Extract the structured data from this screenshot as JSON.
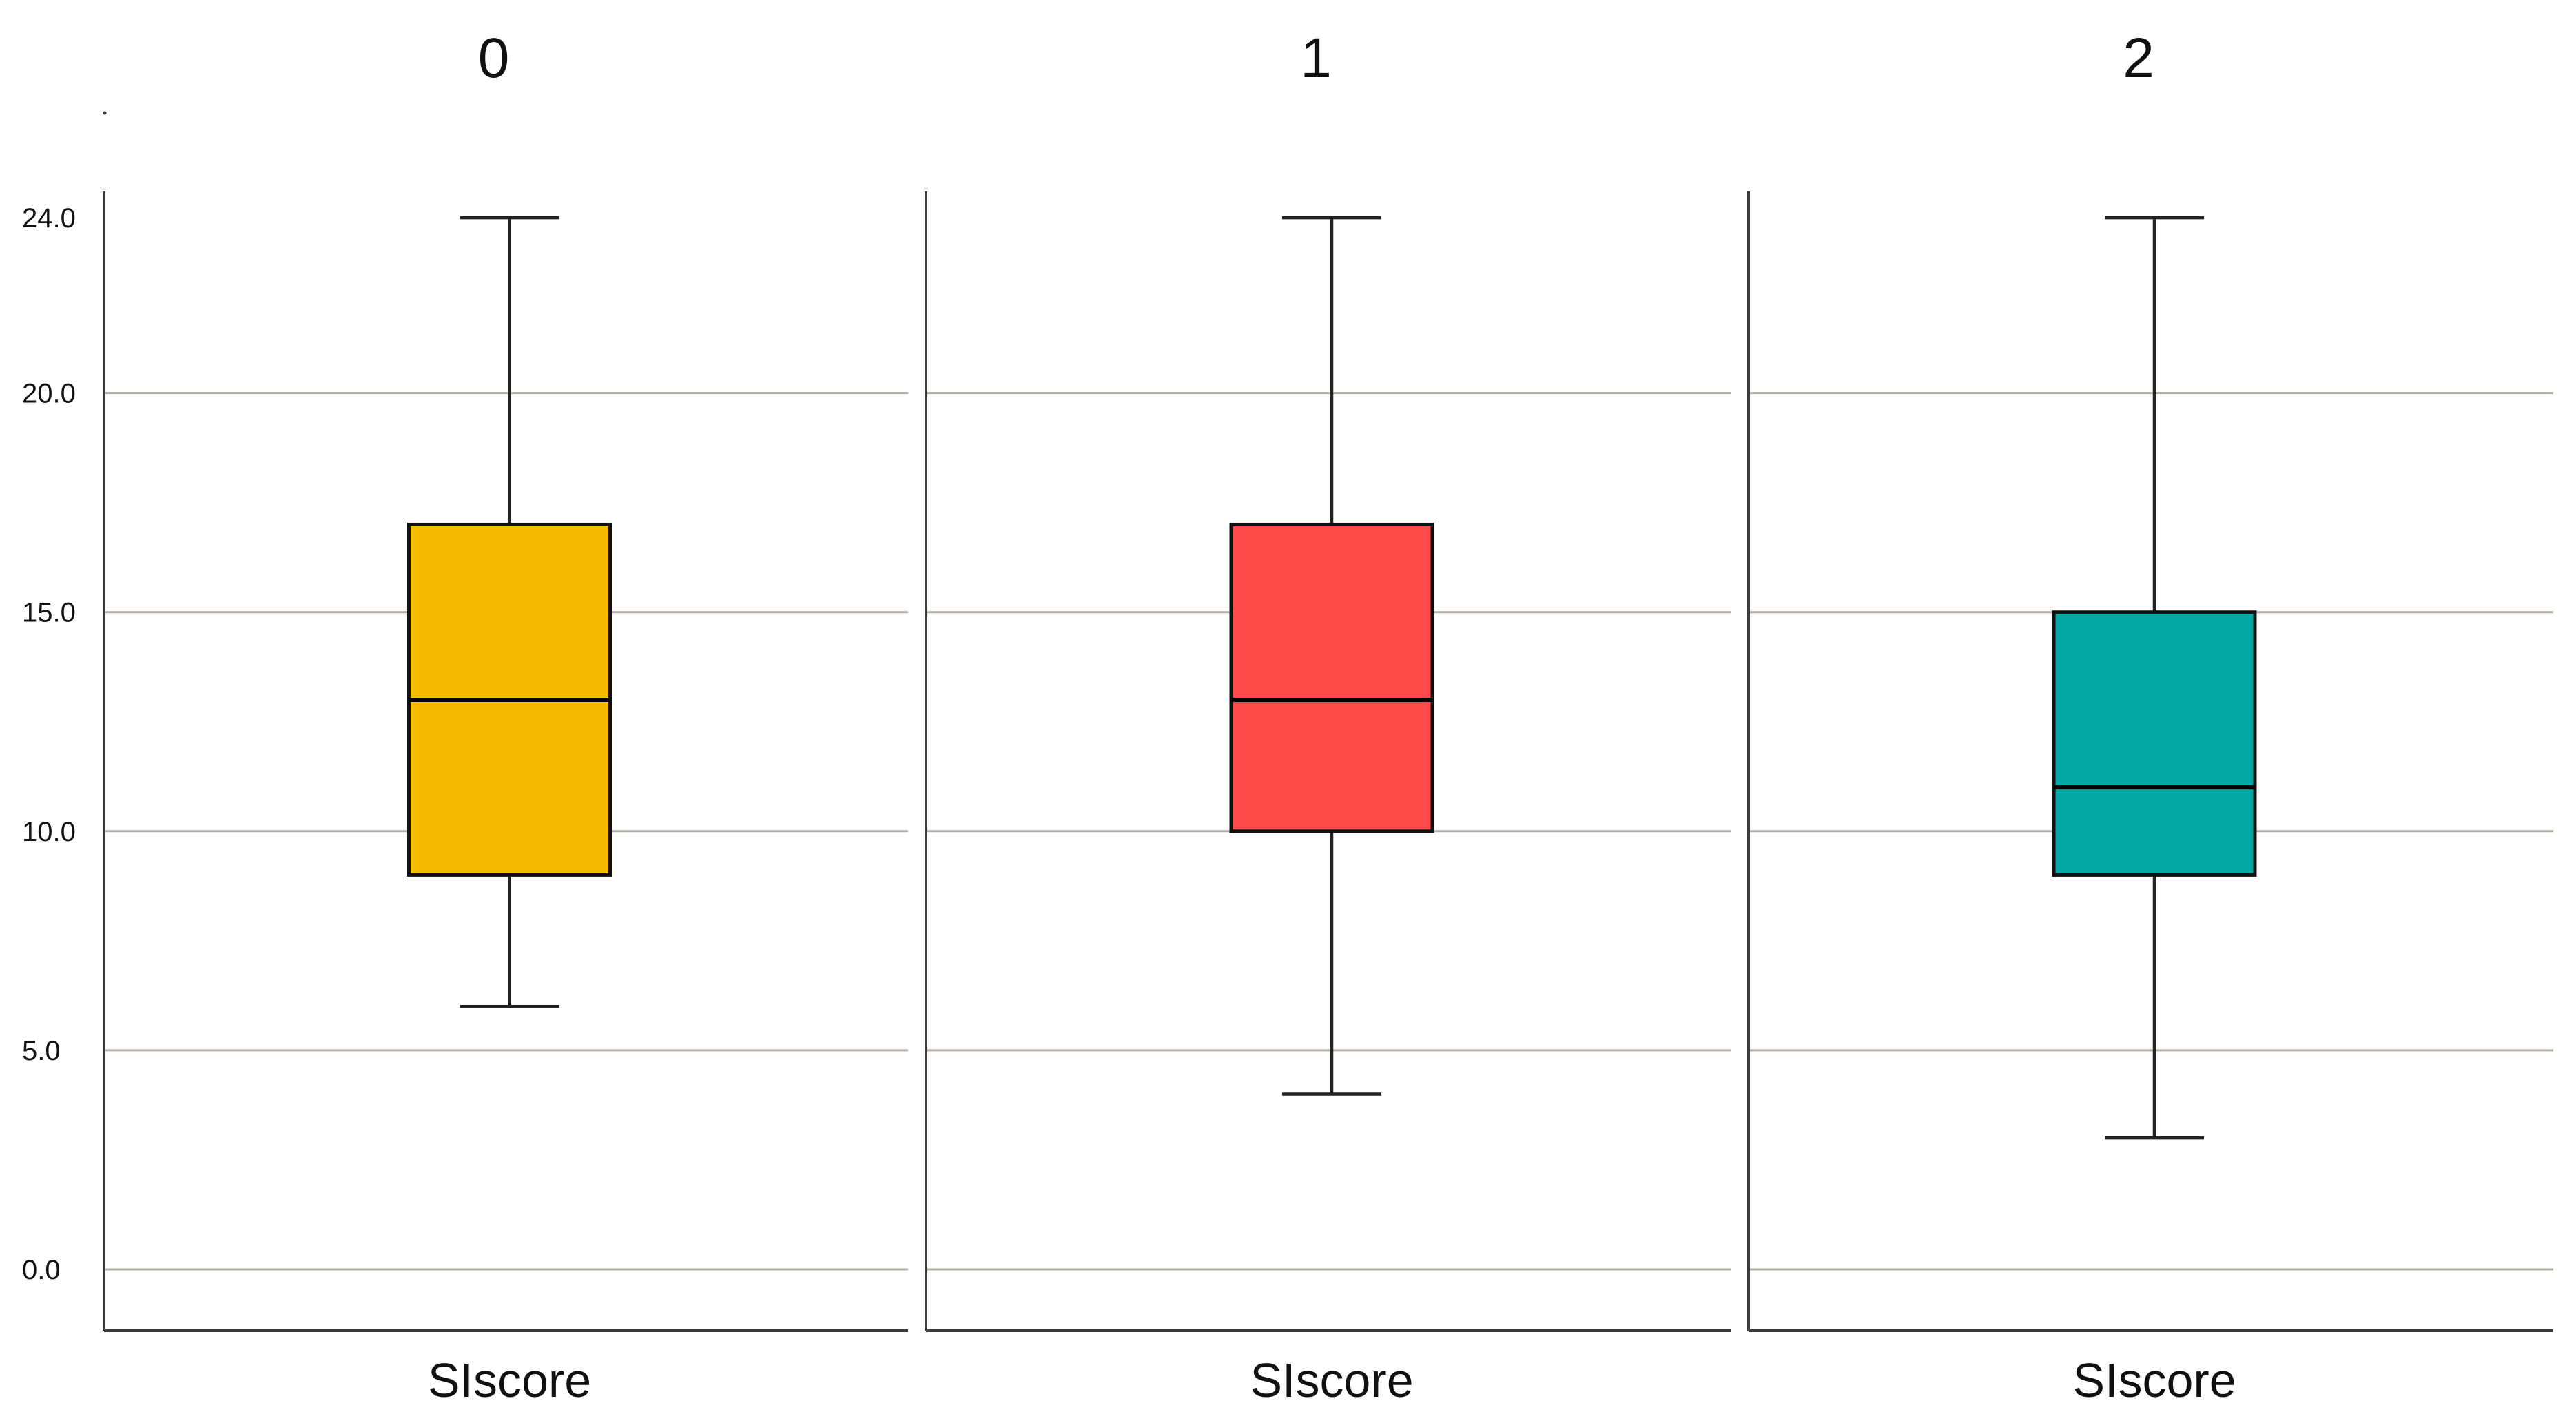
{
  "chart_data": {
    "type": "boxplot",
    "yticks": [
      0.0,
      5.0,
      10.0,
      15.0,
      20.0,
      24.0
    ],
    "ytick_labels": [
      "0.0",
      "5.0",
      "10.0",
      "15.0",
      "20.0",
      "24.0"
    ],
    "ylim": [
      -1.4,
      24.6
    ],
    "grid": true,
    "panels": [
      {
        "title": "0",
        "xlabel": "SIscore",
        "color": "#F5BC00",
        "whisker_low": 6,
        "q1": 9,
        "median": 13,
        "q3": 17,
        "whisker_high": 24
      },
      {
        "title": "1",
        "xlabel": "SIscore",
        "color": "#FF4A4A",
        "whisker_low": 4,
        "q1": 10,
        "median": 13,
        "q3": 17,
        "whisker_high": 24
      },
      {
        "title": "2",
        "xlabel": "SIscore",
        "color": "#00A8A6",
        "whisker_low": 3,
        "q1": 9,
        "median": 11,
        "q3": 15,
        "whisker_high": 24
      }
    ]
  }
}
